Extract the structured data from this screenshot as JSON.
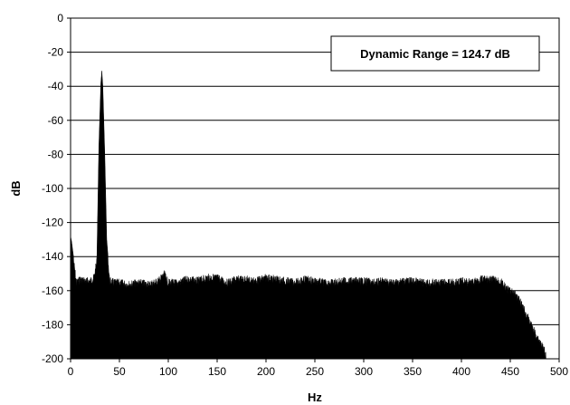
{
  "chart_data": {
    "type": "area",
    "title": "",
    "xlabel": "Hz",
    "ylabel": "dB",
    "xlim": [
      0,
      500
    ],
    "ylim": [
      -200,
      0
    ],
    "xticks": [
      0,
      50,
      100,
      150,
      200,
      250,
      300,
      350,
      400,
      450,
      500
    ],
    "yticks": [
      0,
      -20,
      -40,
      -60,
      -80,
      -100,
      -120,
      -140,
      -160,
      -180,
      -200
    ],
    "grid": "horizontal",
    "legend": "none",
    "fill_color": "#000000",
    "annotation": {
      "text": "Dynamic Range = 124.7 dB",
      "placement": "top-right"
    },
    "series": [
      {
        "x": [
          0,
          1,
          3,
          6,
          10,
          15,
          20,
          24,
          27,
          29,
          31,
          32,
          33,
          35,
          37,
          40,
          45,
          50,
          60,
          70,
          80,
          90,
          96,
          100,
          110,
          120,
          130,
          140,
          150,
          160,
          170,
          180,
          190,
          200,
          210,
          220,
          230,
          240,
          250,
          260,
          270,
          280,
          290,
          300,
          310,
          320,
          330,
          340,
          350,
          360,
          370,
          380,
          390,
          400,
          410,
          420,
          430,
          440,
          445,
          450,
          455,
          460,
          465,
          470,
          475,
          480,
          485,
          488
        ],
        "values": [
          -128,
          -131,
          -140,
          -153,
          -151,
          -152,
          -152,
          -150,
          -140,
          -75,
          -38,
          -31,
          -40,
          -80,
          -130,
          -152,
          -153,
          -153,
          -154,
          -153,
          -154,
          -152,
          -148,
          -153,
          -153,
          -151,
          -152,
          -150,
          -150,
          -153,
          -151,
          -151,
          -152,
          -150,
          -151,
          -152,
          -153,
          -151,
          -152,
          -153,
          -153,
          -152,
          -152,
          -152,
          -153,
          -152,
          -153,
          -152,
          -152,
          -153,
          -153,
          -153,
          -153,
          -152,
          -153,
          -151,
          -151,
          -152,
          -156,
          -158,
          -160,
          -164,
          -170,
          -176,
          -182,
          -187,
          -193,
          -200
        ]
      }
    ]
  }
}
